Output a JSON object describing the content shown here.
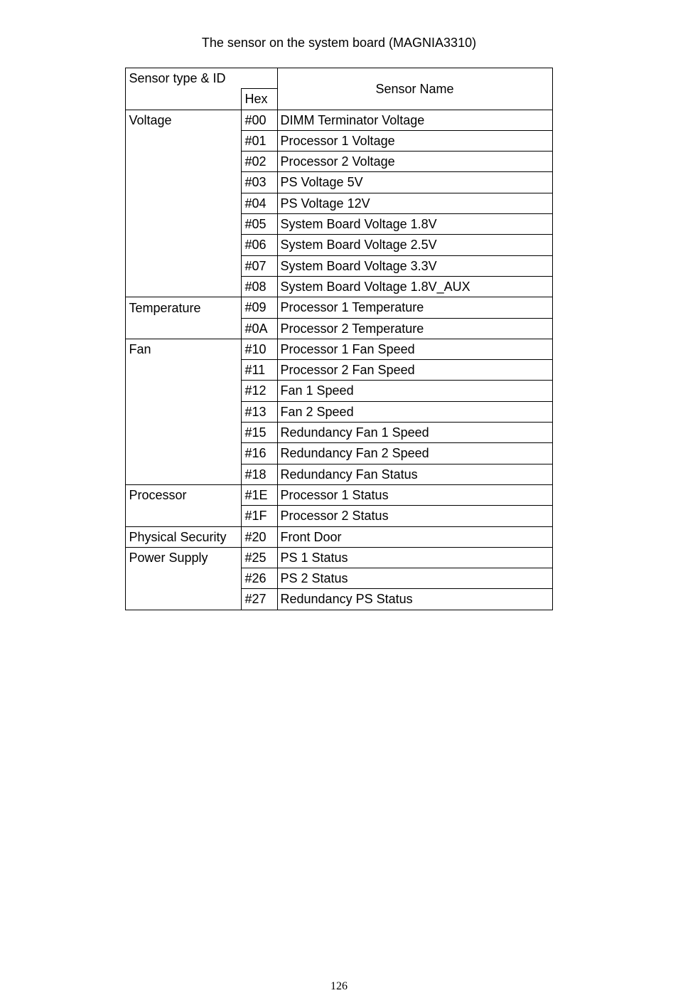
{
  "title": "The sensor on the system board (MAGNIA3310)",
  "header": {
    "sensor_type_id": "Sensor type & ID",
    "hex": "Hex",
    "sensor_name": "Sensor Name"
  },
  "groups": [
    {
      "type": "Voltage",
      "rows": [
        {
          "hex": "#00",
          "name": "DIMM Terminator Voltage"
        },
        {
          "hex": "#01",
          "name": "Processor 1 Voltage"
        },
        {
          "hex": "#02",
          "name": "Processor 2 Voltage"
        },
        {
          "hex": "#03",
          "name": "PS Voltage 5V"
        },
        {
          "hex": "#04",
          "name": "PS Voltage 12V"
        },
        {
          "hex": "#05",
          "name": "System Board Voltage 1.8V"
        },
        {
          "hex": "#06",
          "name": "System Board Voltage 2.5V"
        },
        {
          "hex": "#07",
          "name": "System Board Voltage 3.3V"
        },
        {
          "hex": "#08",
          "name": "System Board Voltage 1.8V_AUX"
        }
      ]
    },
    {
      "type": "Temperature",
      "rows": [
        {
          "hex": "#09",
          "name": "Processor 1 Temperature"
        },
        {
          "hex": "#0A",
          "name": "Processor 2 Temperature"
        }
      ]
    },
    {
      "type": "Fan",
      "rows": [
        {
          "hex": "#10",
          "name": "Processor 1 Fan Speed"
        },
        {
          "hex": "#11",
          "name": "Processor 2 Fan Speed"
        },
        {
          "hex": "#12",
          "name": "Fan 1 Speed"
        },
        {
          "hex": "#13",
          "name": "Fan 2 Speed"
        },
        {
          "hex": "#15",
          "name": "Redundancy Fan 1 Speed"
        },
        {
          "hex": "#16",
          "name": "Redundancy Fan 2 Speed"
        },
        {
          "hex": "#18",
          "name": "Redundancy Fan Status"
        }
      ]
    },
    {
      "type": "Processor",
      "rows": [
        {
          "hex": "#1E",
          "name": "Processor 1 Status"
        },
        {
          "hex": "#1F",
          "name": "Processor 2 Status"
        }
      ]
    },
    {
      "type": "Physical Security",
      "rows": [
        {
          "hex": "#20",
          "name": "Front Door"
        }
      ]
    },
    {
      "type": "Power Supply",
      "rows": [
        {
          "hex": "#25",
          "name": "PS 1 Status"
        },
        {
          "hex": "#26",
          "name": "PS 2 Status"
        },
        {
          "hex": "#27",
          "name": "Redundancy PS Status"
        }
      ]
    }
  ],
  "page_number": "126"
}
